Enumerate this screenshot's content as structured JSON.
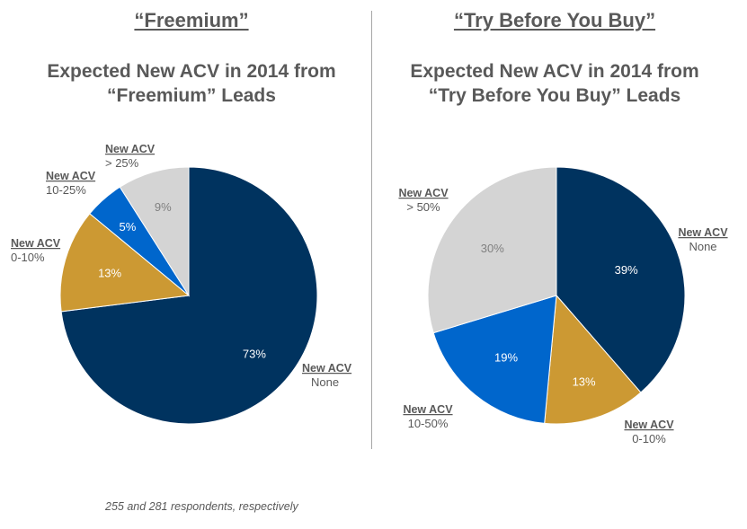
{
  "left_heading": "“Freemium”",
  "right_heading": "“Try Before You Buy”",
  "footnote": "255 and 281 respondents, respectively",
  "chart_data": [
    {
      "type": "pie",
      "title_lines": [
        "Expected New ACV in 2014 from",
        "“Freemium” Leads"
      ],
      "slices": [
        {
          "category": "New ACV",
          "range": "None",
          "value": 73,
          "label": "73%",
          "color": "#00335f",
          "label_color": "#ffffff"
        },
        {
          "category": "New ACV",
          "range": "0-10%",
          "value": 13,
          "label": "13%",
          "color": "#cc9933",
          "label_color": "#ffffff"
        },
        {
          "category": "New ACV",
          "range": "10-25%",
          "value": 5,
          "label": "5%",
          "color": "#0066cc",
          "label_color": "#ffffff"
        },
        {
          "category": "New ACV",
          "range": "> 25%",
          "value": 9,
          "label": "9%",
          "color": "#d4d4d4",
          "label_color": "#808080"
        }
      ]
    },
    {
      "type": "pie",
      "title_lines": [
        "Expected New ACV in 2014 from",
        "“Try Before You Buy” Leads"
      ],
      "slices": [
        {
          "category": "New ACV",
          "range": "None",
          "value": 39,
          "label": "39%",
          "color": "#00335f",
          "label_color": "#ffffff"
        },
        {
          "category": "New ACV",
          "range": "0-10%",
          "value": 13,
          "label": "13%",
          "color": "#cc9933",
          "label_color": "#ffffff"
        },
        {
          "category": "New ACV",
          "range": "10-50%",
          "value": 19,
          "label": "19%",
          "color": "#0066cc",
          "label_color": "#ffffff"
        },
        {
          "category": "New ACV",
          "range": "> 50%",
          "value": 30,
          "label": "30%",
          "color": "#d4d4d4",
          "label_color": "#808080"
        }
      ]
    }
  ]
}
